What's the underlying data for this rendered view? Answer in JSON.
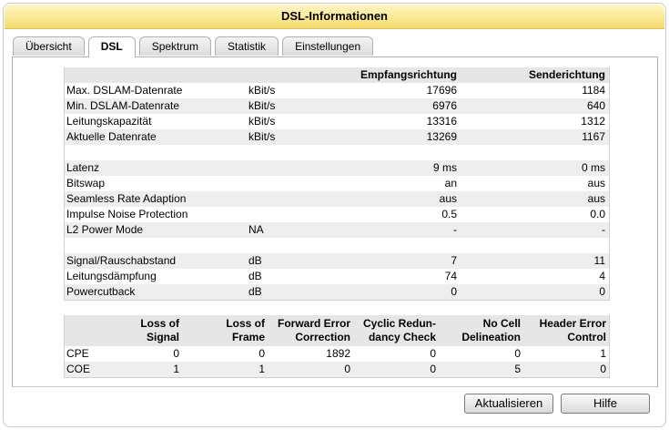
{
  "title": "DSL-Informationen",
  "tabs": [
    "Übersicht",
    "DSL",
    "Spektrum",
    "Statistik",
    "Einstellungen"
  ],
  "line_table": {
    "header": [
      "Empfangsrichtung",
      "Senderichtung"
    ],
    "groups": [
      [
        {
          "label": "Max. DSLAM-Datenrate",
          "unit": "kBit/s",
          "rx": "17696",
          "tx": "1184"
        },
        {
          "label": "Min. DSLAM-Datenrate",
          "unit": "kBit/s",
          "rx": "6976",
          "tx": "640"
        },
        {
          "label": "Leitungskapazität",
          "unit": "kBit/s",
          "rx": "13316",
          "tx": "1312"
        },
        {
          "label": "Aktuelle Datenrate",
          "unit": "kBit/s",
          "rx": "13269",
          "tx": "1167"
        }
      ],
      [
        {
          "label": "Latenz",
          "rx": "9 ms",
          "tx": "0 ms"
        },
        {
          "label": "Bitswap",
          "rx": "an",
          "tx": "aus"
        },
        {
          "label": "Seamless Rate Adaption",
          "rx": "aus",
          "tx": "aus"
        },
        {
          "label": "Impulse Noise Protection",
          "rx": "0.5",
          "tx": "0.0"
        },
        {
          "label": "L2 Power Mode",
          "unit": "NA",
          "rx": "-",
          "tx": "-"
        }
      ],
      [
        {
          "label": "Signal/Rauschabstand",
          "unit": "dB",
          "rx": "7",
          "tx": "11"
        },
        {
          "label": "Leitungsdämpfung",
          "unit": "dB",
          "rx": "74",
          "tx": "4"
        },
        {
          "label": "Powercutback",
          "unit": "dB",
          "rx": "0",
          "tx": "0"
        }
      ]
    ]
  },
  "error_table": {
    "header": [
      "Loss of\nSignal",
      "Loss of\nFrame",
      "Forward Error\nCorrection",
      "Cyclic Redun-\ndancy Check",
      "No Cell\nDelineation",
      "Header Error\nControl"
    ],
    "rows": [
      {
        "label": "CPE",
        "values": [
          "0",
          "0",
          "1892",
          "0",
          "0",
          "1"
        ]
      },
      {
        "label": "COE",
        "values": [
          "1",
          "1",
          "0",
          "0",
          "5",
          "0"
        ]
      }
    ]
  },
  "buttons": [
    "Aktualisieren",
    "Hilfe"
  ]
}
